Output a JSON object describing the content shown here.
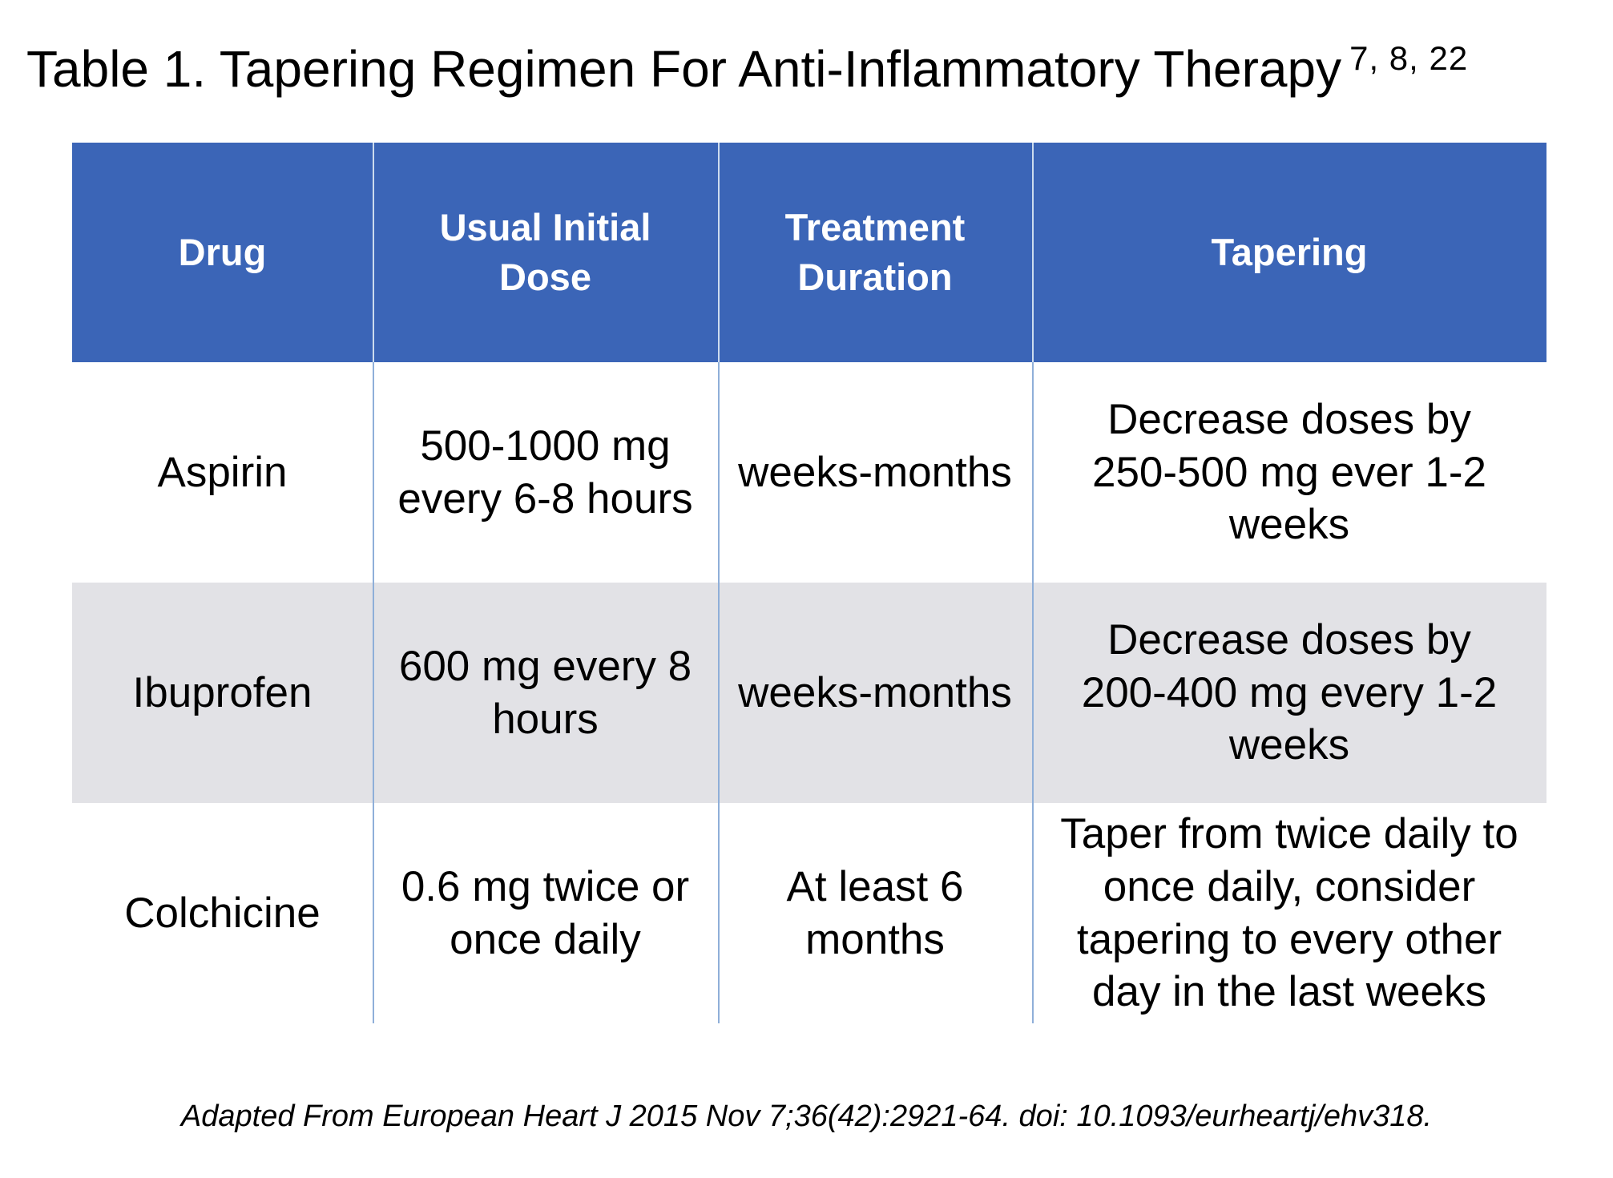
{
  "title": {
    "text": "Table 1. Tapering Regimen For Anti-Inflammatory Therapy",
    "superscript": "7, 8, 22"
  },
  "colors": {
    "header_bg": "#3B65B7",
    "header_text": "#FFFFFF",
    "row_bg": "#FFFFFF",
    "row_alt_bg": "#E2E2E6",
    "divider": "#8FAFD9",
    "text": "#000000"
  },
  "table": {
    "columns": [
      {
        "label": "Drug"
      },
      {
        "label": "Usual Initial\nDose"
      },
      {
        "label": "Treatment\nDuration"
      },
      {
        "label": "Tapering"
      }
    ],
    "rows": [
      {
        "drug": "Aspirin",
        "dose": "500-1000 mg\nevery 6-8 hours",
        "duration": "weeks-months",
        "tapering": "Decrease doses by\n250-500 mg ever 1-2\nweeks"
      },
      {
        "drug": "Ibuprofen",
        "dose": "600 mg every 8\nhours",
        "duration": "weeks-months",
        "tapering": "Decrease doses by\n200-400 mg every 1-2\nweeks"
      },
      {
        "drug": "Colchicine",
        "dose": "0.6 mg twice or\nonce daily",
        "duration": "At least 6\nmonths",
        "tapering": "Taper from twice daily to\nonce daily, consider\ntapering to every other\nday in the last weeks"
      }
    ]
  },
  "footer": "Adapted From European Heart J 2015 Nov 7;36(42):2921-64. doi: 10.1093/eurheartj/ehv318."
}
